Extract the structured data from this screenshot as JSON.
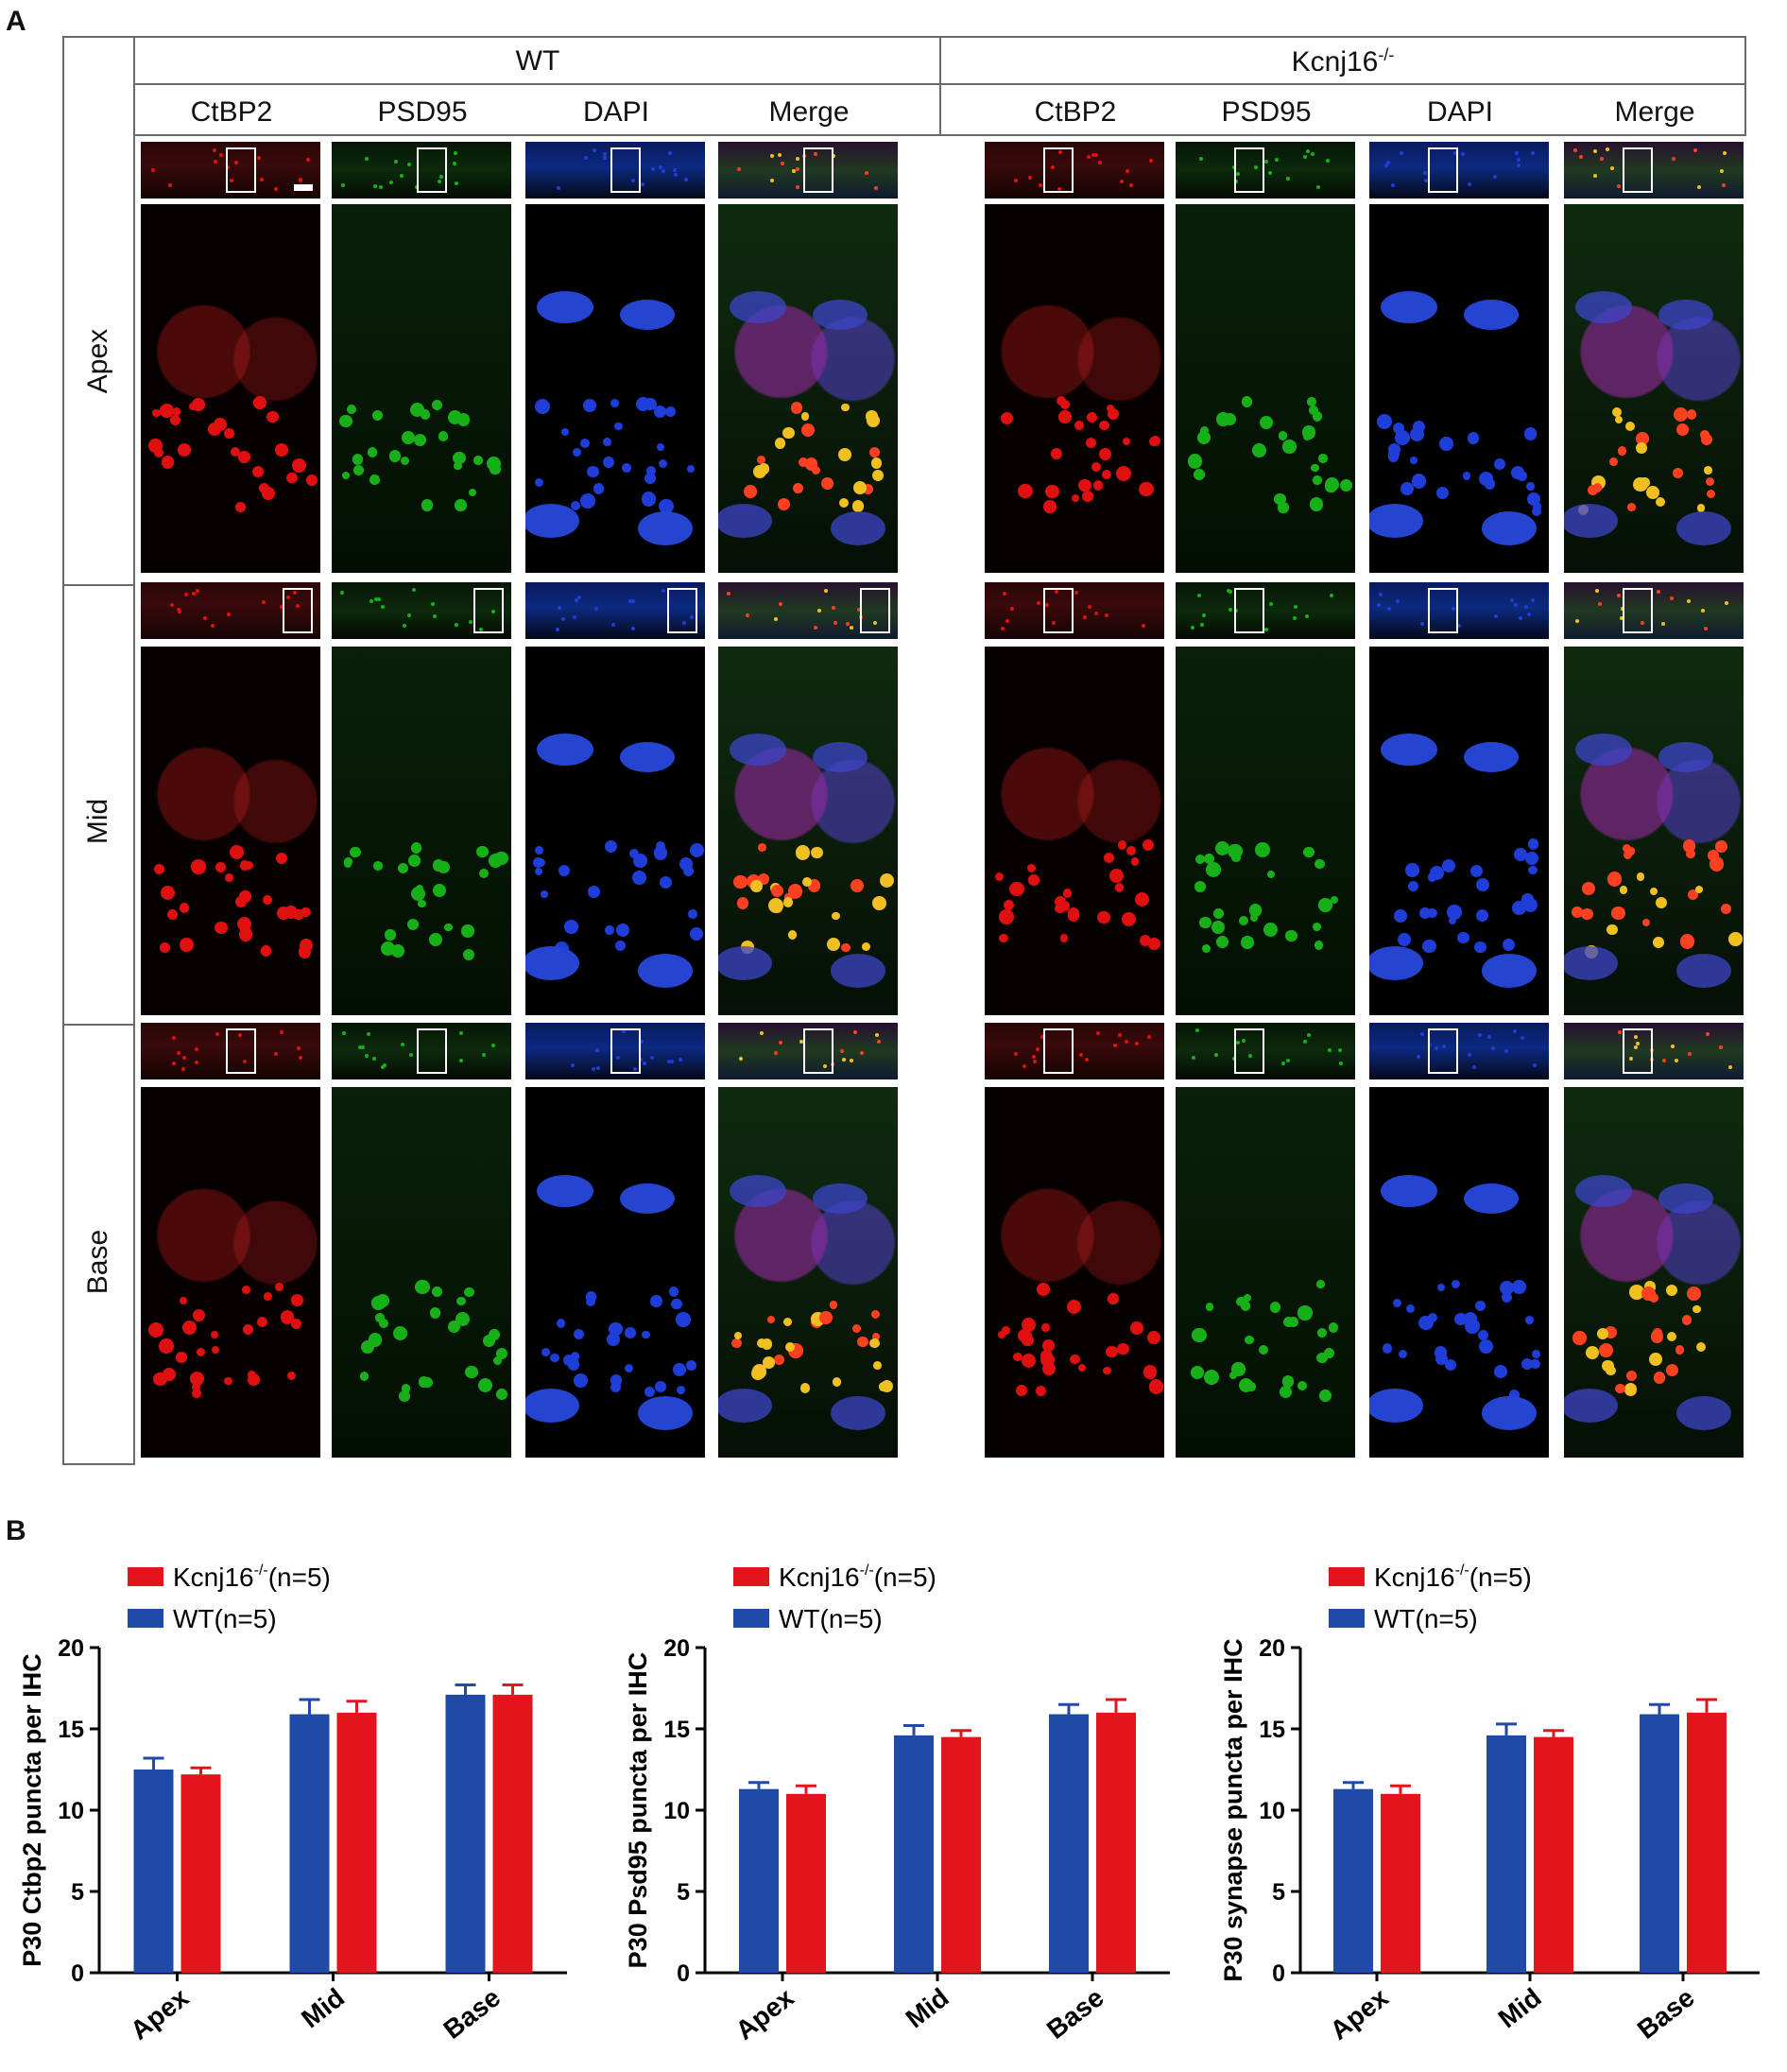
{
  "panel_labels": {
    "a": "A",
    "b": "B"
  },
  "panel_a": {
    "groups": [
      {
        "name": "WT",
        "channels": [
          "CtBP2",
          "PSD95",
          "DAPI",
          "Merge"
        ]
      },
      {
        "name": "Kcnj16",
        "superscript": "-/-",
        "channels": [
          "CtBP2",
          "PSD95",
          "DAPI",
          "Merge"
        ]
      }
    ],
    "regions": [
      "Apex",
      "Mid",
      "Base"
    ],
    "channel_colors": {
      "CtBP2": "#e01010",
      "PSD95": "#18b018",
      "DAPI": "#1f3ed8",
      "Merge": "#c8a020"
    }
  },
  "chart_data": [
    {
      "type": "bar",
      "ylabel": "P30 Ctbp2 puncta per IHC",
      "categories": [
        "Apex",
        "Mid",
        "Base"
      ],
      "ylim": [
        0,
        20
      ],
      "yticks": [
        0,
        5,
        10,
        15,
        20
      ],
      "legend": [
        {
          "label": "Kcnj16",
          "sup": "-/-",
          "suffix": "(n=5)",
          "color": "#e3141c"
        },
        {
          "label": "WT(n=5)",
          "sup": "",
          "suffix": "",
          "color": "#1f4aa8"
        }
      ],
      "legend_position": "top-left",
      "series": [
        {
          "name": "WT(n=5)",
          "color": "#1f4aa8",
          "values": [
            12.5,
            15.9,
            17.1
          ],
          "errors": [
            0.7,
            0.9,
            0.6
          ]
        },
        {
          "name": "Kcnj16-/-(n=5)",
          "color": "#e3141c",
          "values": [
            12.2,
            16.0,
            17.1
          ],
          "errors": [
            0.4,
            0.7,
            0.6
          ]
        }
      ]
    },
    {
      "type": "bar",
      "ylabel": "P30 Psd95 puncta per IHC",
      "categories": [
        "Apex",
        "Mid",
        "Base"
      ],
      "ylim": [
        0,
        20
      ],
      "yticks": [
        0,
        5,
        10,
        15,
        20
      ],
      "legend": [
        {
          "label": "Kcnj16",
          "sup": "-/-",
          "suffix": "(n=5)",
          "color": "#e3141c"
        },
        {
          "label": "WT(n=5)",
          "sup": "",
          "suffix": "",
          "color": "#1f4aa8"
        }
      ],
      "legend_position": "top-left",
      "series": [
        {
          "name": "WT(n=5)",
          "color": "#1f4aa8",
          "values": [
            11.3,
            14.6,
            15.9
          ],
          "errors": [
            0.4,
            0.6,
            0.6
          ]
        },
        {
          "name": "Kcnj16-/-(n=5)",
          "color": "#e3141c",
          "values": [
            11.0,
            14.5,
            16.0
          ],
          "errors": [
            0.5,
            0.4,
            0.8
          ]
        }
      ]
    },
    {
      "type": "bar",
      "ylabel": "P30 synapse puncta per IHC",
      "categories": [
        "Apex",
        "Mid",
        "Base"
      ],
      "ylim": [
        0,
        20
      ],
      "yticks": [
        0,
        5,
        10,
        15,
        20
      ],
      "legend": [
        {
          "label": "Kcnj16",
          "sup": "-/-",
          "suffix": "(n=5)",
          "color": "#e3141c"
        },
        {
          "label": "WT(n=5)",
          "sup": "",
          "suffix": "",
          "color": "#1f4aa8"
        }
      ],
      "legend_position": "top-left",
      "series": [
        {
          "name": "WT(n=5)",
          "color": "#1f4aa8",
          "values": [
            11.3,
            14.6,
            15.9
          ],
          "errors": [
            0.4,
            0.7,
            0.6
          ]
        },
        {
          "name": "Kcnj16-/-(n=5)",
          "color": "#e3141c",
          "values": [
            11.0,
            14.5,
            16.0
          ],
          "errors": [
            0.5,
            0.4,
            0.8
          ]
        }
      ]
    }
  ]
}
